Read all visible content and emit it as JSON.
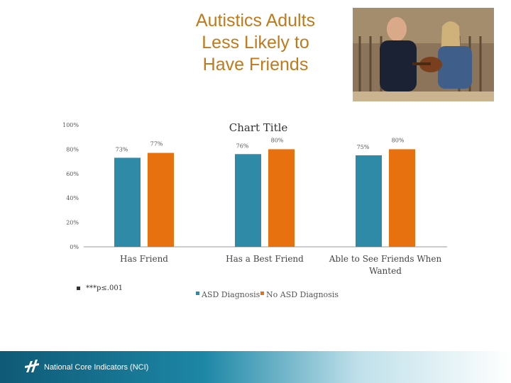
{
  "slide": {
    "title": "Autistics Adults\nLess Likely to\nHave Friends",
    "photo_alt": "photo-two-men-playing-guitar",
    "footnote": "***p≤.001",
    "footer_text": "National Core Indicators (NCI)"
  },
  "colors": {
    "asd": "#2e8aa6",
    "no_asd": "#e8710f",
    "title": "#c07a1c"
  },
  "chart_data": {
    "type": "bar",
    "title": "Chart Title",
    "categories": [
      "Has Friend",
      "Has a Best Friend",
      "Able to See Friends When Wanted"
    ],
    "category_lines": [
      [
        "Has Friend"
      ],
      [
        "Has a Best Friend"
      ],
      [
        "Able to See Friends When",
        "Wanted"
      ]
    ],
    "series": [
      {
        "name": "ASD Diagnosis",
        "values": [
          73,
          76,
          75
        ],
        "labels": [
          "73%",
          "76%",
          "75%"
        ]
      },
      {
        "name": "No ASD Diagnosis",
        "values": [
          77,
          80,
          80
        ],
        "labels": [
          "77%",
          "80%",
          "80%"
        ]
      }
    ],
    "ylim": [
      0,
      100
    ],
    "yticks": [
      0,
      20,
      40,
      60,
      80,
      100
    ],
    "ytick_labels": [
      "0%",
      "20%",
      "40%",
      "60%",
      "80%",
      "100%"
    ],
    "grid": false,
    "legend": "bottom"
  }
}
